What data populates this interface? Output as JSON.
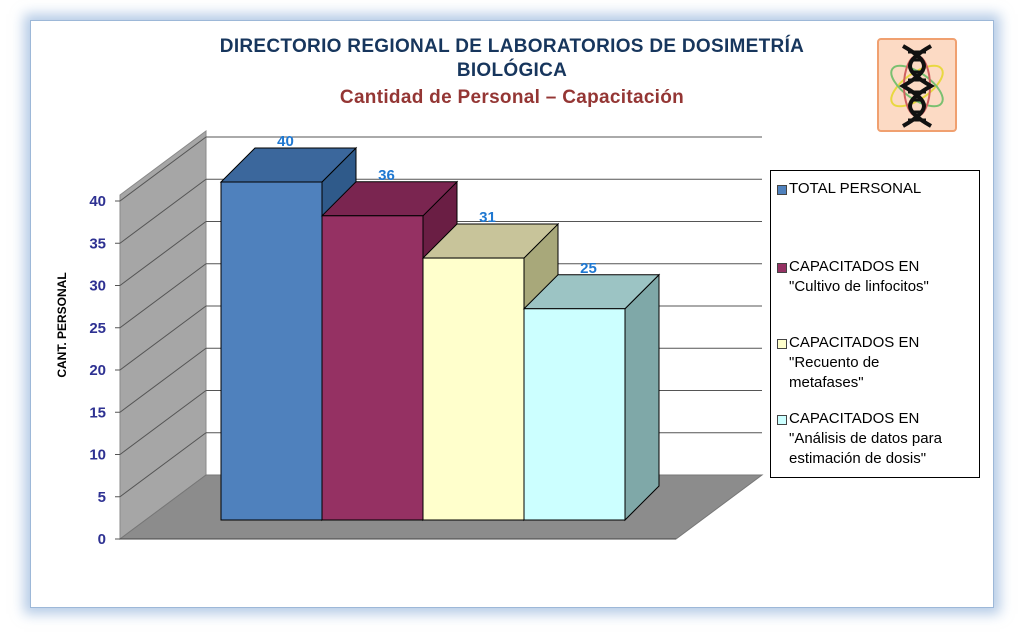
{
  "chart_data": {
    "type": "bar",
    "title": "DIRECTORIO REGIONAL DE LABORATORIOS DE DOSIMETRÍA",
    "title_line2": "BIOLÓGICA",
    "subtitle": "Cantidad de Personal  – Capacitación",
    "ylabel": "CANT. PERSONAL",
    "ylim": [
      0,
      40
    ],
    "yticks": [
      "0",
      "5",
      "10",
      "15",
      "20",
      "25",
      "30",
      "35",
      "40"
    ],
    "grid": true,
    "legend_position": "right",
    "series": [
      {
        "name": "TOTAL PERSONAL",
        "value": 40,
        "label": "40",
        "color": "#4f81bd",
        "side": "#2f5a8a",
        "top": "#3b679c"
      },
      {
        "name": "CAPACITADOS EN \"Cultivo de linfocitos\"",
        "value": 36,
        "label": "36",
        "color": "#953163",
        "side": "#6a1e44",
        "top": "#7a2550"
      },
      {
        "name": "CAPACITADOS EN \"Recuento de metafases\"",
        "value": 31,
        "label": "31",
        "color": "#ffffcc",
        "side": "#a8a87a",
        "top": "#c8c49a"
      },
      {
        "name": "CAPACITADOS EN \"Análisis de datos para estimación de dosis\"",
        "value": 25,
        "label": "25",
        "color": "#ccffff",
        "side": "#7fa8a8",
        "top": "#9cc4c4"
      }
    ],
    "legend_lines": [
      [
        "TOTAL PERSONAL"
      ],
      [
        "CAPACITADOS EN",
        "\"Cultivo de linfocitos\""
      ],
      [
        "CAPACITADOS EN",
        "\"Recuento de",
        "metafases\""
      ],
      [
        "CAPACITADOS EN",
        "\"Análisis de datos para",
        "estimación de dosis\""
      ]
    ]
  },
  "logo": {
    "icon": "dna-icon"
  }
}
